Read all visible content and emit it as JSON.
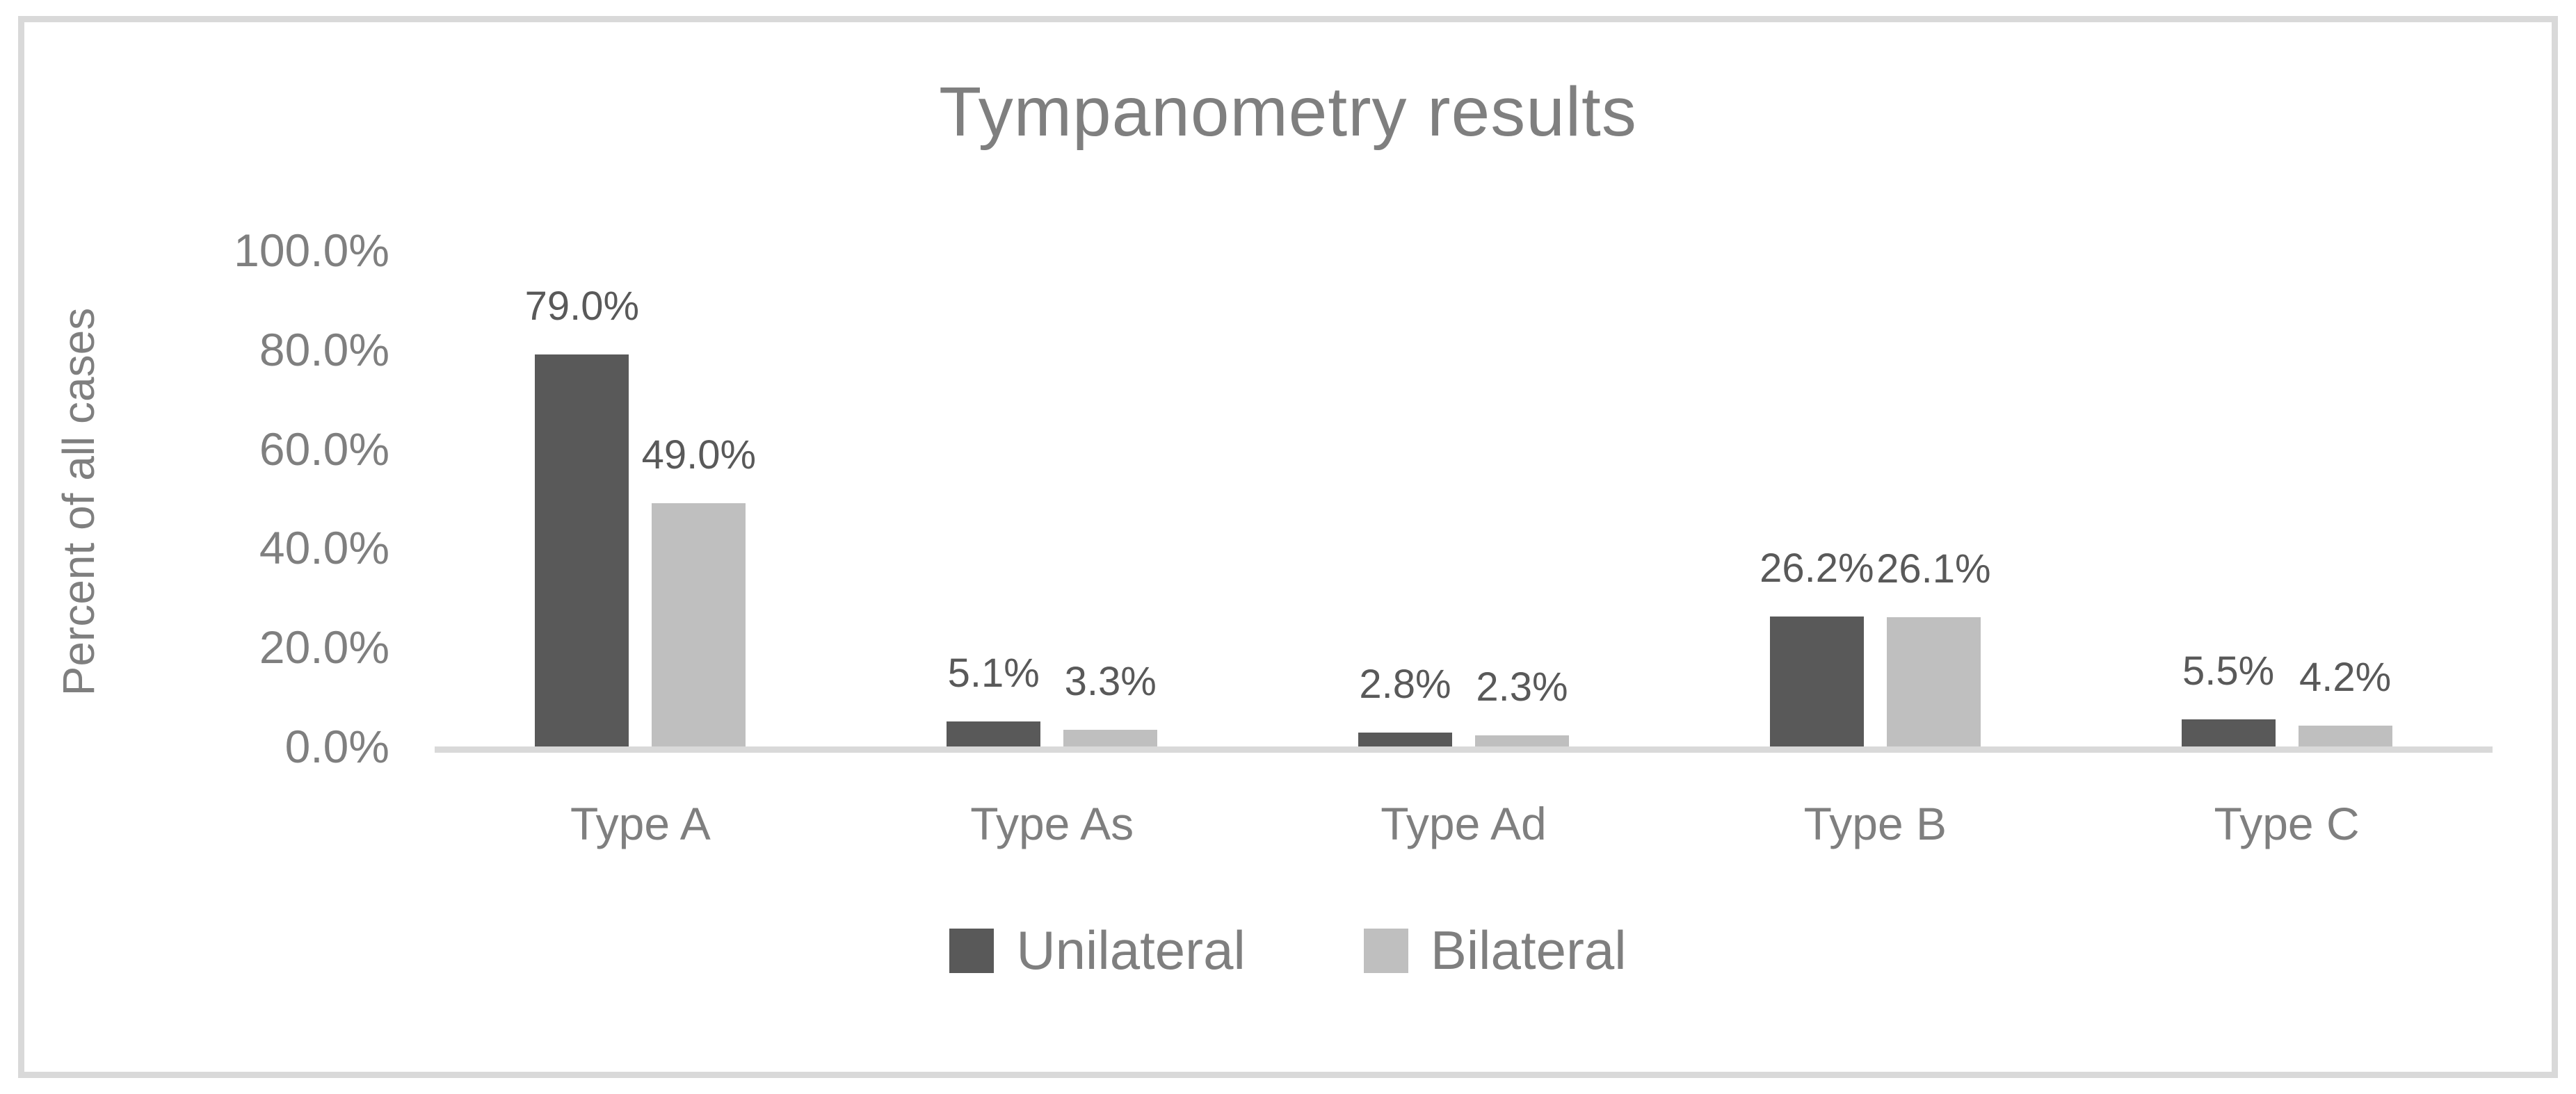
{
  "chart_data": {
    "type": "bar",
    "title": "Tympanometry results",
    "ylabel": "Percent of all cases",
    "xlabel": "",
    "categories": [
      "Type A",
      "Type As",
      "Type Ad",
      "Type B",
      "Type C"
    ],
    "series": [
      {
        "name": "Unilateral",
        "color": "#595959",
        "values": [
          79.0,
          5.1,
          2.8,
          26.2,
          5.5
        ],
        "labels": [
          "79.0%",
          "5.1%",
          "2.8%",
          "26.2%",
          "5.5%"
        ]
      },
      {
        "name": "Bilateral",
        "color": "#bfbfbf",
        "values": [
          49.0,
          3.3,
          2.3,
          26.1,
          4.2
        ],
        "labels": [
          "49.0%",
          "3.3%",
          "2.3%",
          "26.1%",
          "4.2%"
        ]
      }
    ],
    "y_axis": {
      "min": 0,
      "max": 100,
      "tick_labels": [
        "100.0%",
        "80.0%",
        "60.0%",
        "40.0%",
        "20.0%",
        "0.0%"
      ]
    },
    "grid": false,
    "legend_position": "bottom",
    "colors": {
      "axis_text": "#7f7f7f",
      "data_label_text": "#595959",
      "axis_line": "#d9d9d9",
      "frame_border": "#d9d9d9",
      "background": "#ffffff"
    }
  }
}
